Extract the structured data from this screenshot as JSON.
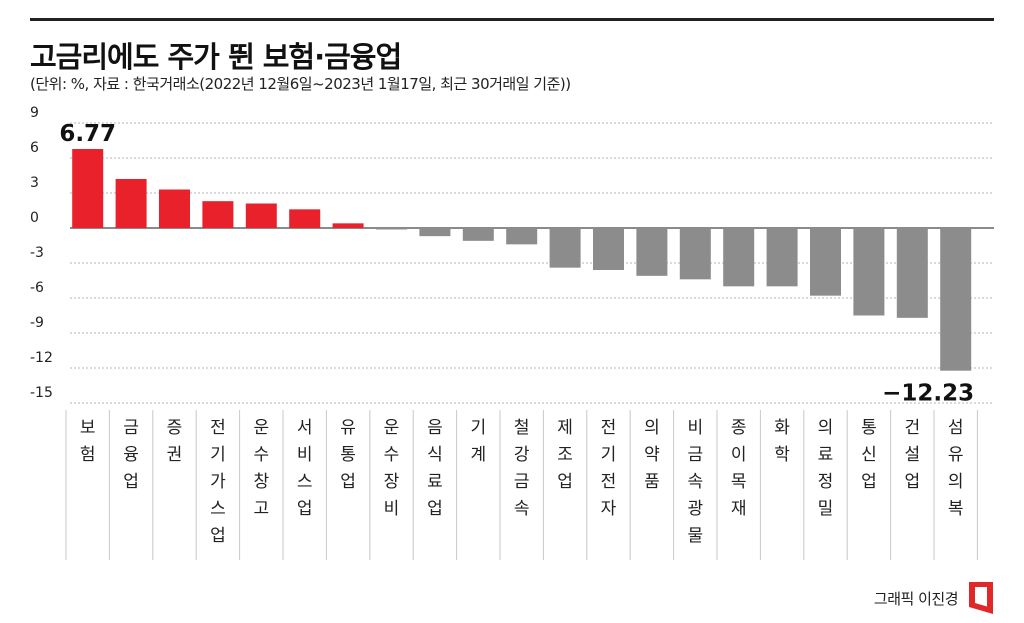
{
  "title": "고금리에도 주가 뛴 보험·금융업",
  "subtitle": "(단위: %, 자료 : 한국거래소(2022년 12월6일~2023년 1월17일, 최근 30거래일 기준))",
  "credit": "그래픽 이진경",
  "colors": {
    "positive": "#e8212b",
    "negative": "#8c8c8c",
    "grid": "#b5b5b5",
    "axis": "#444444",
    "logo": "#e02828"
  },
  "logo_icon": "newspaper-logo-icon",
  "chart_data": {
    "type": "bar",
    "categories": [
      "보험",
      "금융업",
      "증권",
      "전기가스업",
      "운수창고",
      "서비스업",
      "유통업",
      "운수장비",
      "음식료업",
      "기계",
      "철강금속",
      "제조업",
      "전기전자",
      "의약품",
      "비금속광물",
      "종이목재",
      "화학",
      "의료정밀",
      "통신업",
      "건설업",
      "섬유의복"
    ],
    "values": [
      6.77,
      4.2,
      3.3,
      2.3,
      2.1,
      1.6,
      0.4,
      -0.1,
      -0.7,
      -1.1,
      -1.4,
      -3.4,
      -3.6,
      -4.1,
      -4.4,
      -5.0,
      -5.0,
      -5.8,
      -7.5,
      -7.7,
      -12.23
    ],
    "data_labels": [
      {
        "category": "보험",
        "text": "6.77"
      },
      {
        "category": "섬유의복",
        "text": "−12.23"
      }
    ],
    "y_ticks": [
      9,
      6,
      3,
      0,
      -3,
      -6,
      -9,
      -12,
      -15
    ],
    "y_tick_labels": [
      "9",
      "6",
      "3",
      "0",
      "-3",
      "-6",
      "-9",
      "-12",
      "-15"
    ],
    "ylim": [
      -15,
      9
    ],
    "grid": true,
    "category_labels_vertical": true
  }
}
